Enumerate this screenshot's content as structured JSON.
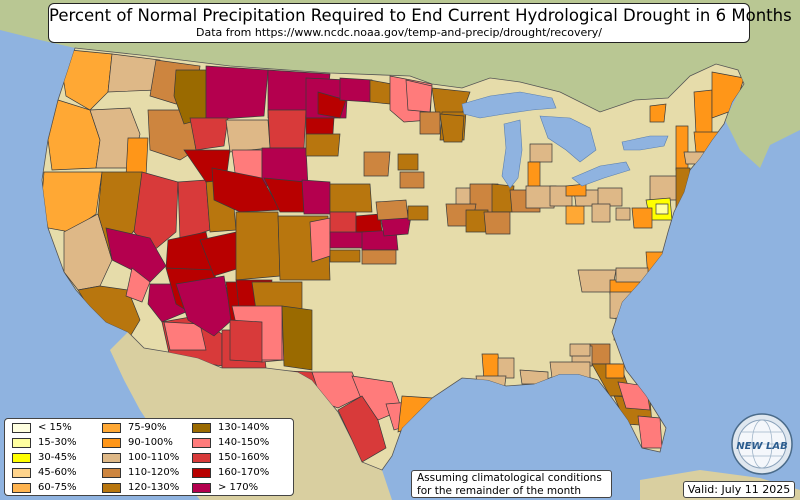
{
  "title": "Percent of Normal Precipitation Required to End Current Hydrological Drought in 6 Months",
  "subtitle": "Data from https://www.ncdc.noaa.gov/temp-and-precip/drought/recovery/",
  "colors": {
    "ocean": "#8fb3e0",
    "land_default": "#e6dcaa",
    "canada_land": "#b9c793",
    "mexico_land": "#d9cfa0",
    "lakes": "#8fb3e0"
  },
  "legend": [
    {
      "label": "< 15%",
      "color": "#ffffe0"
    },
    {
      "label": "15-30%",
      "color": "#ffffa0"
    },
    {
      "label": "30-45%",
      "color": "#ffff00"
    },
    {
      "label": "45-60%",
      "color": "#ffd48c"
    },
    {
      "label": "60-75%",
      "color": "#ffb450"
    },
    {
      "label": "75-90%",
      "color": "#ffa834"
    },
    {
      "label": "90-100%",
      "color": "#ff9618"
    },
    {
      "label": "100-110%",
      "color": "#deb887"
    },
    {
      "label": "110-120%",
      "color": "#cd853f"
    },
    {
      "label": "120-130%",
      "color": "#b8760e"
    },
    {
      "label": "130-140%",
      "color": "#9a6a00"
    },
    {
      "label": "140-150%",
      "color": "#ff7b7b"
    },
    {
      "label": "150-160%",
      "color": "#d83a3a"
    },
    {
      "label": "160-170%",
      "color": "#b80000"
    },
    {
      "label": "> 170%",
      "color": "#b4004e"
    }
  ],
  "note": {
    "line1": "Assuming climatological conditions",
    "line2": "for the remainder of the month"
  },
  "valid": "Valid: July 11 2025",
  "logo": {
    "text": "NEW LAB",
    "icon": "globe-icon"
  }
}
